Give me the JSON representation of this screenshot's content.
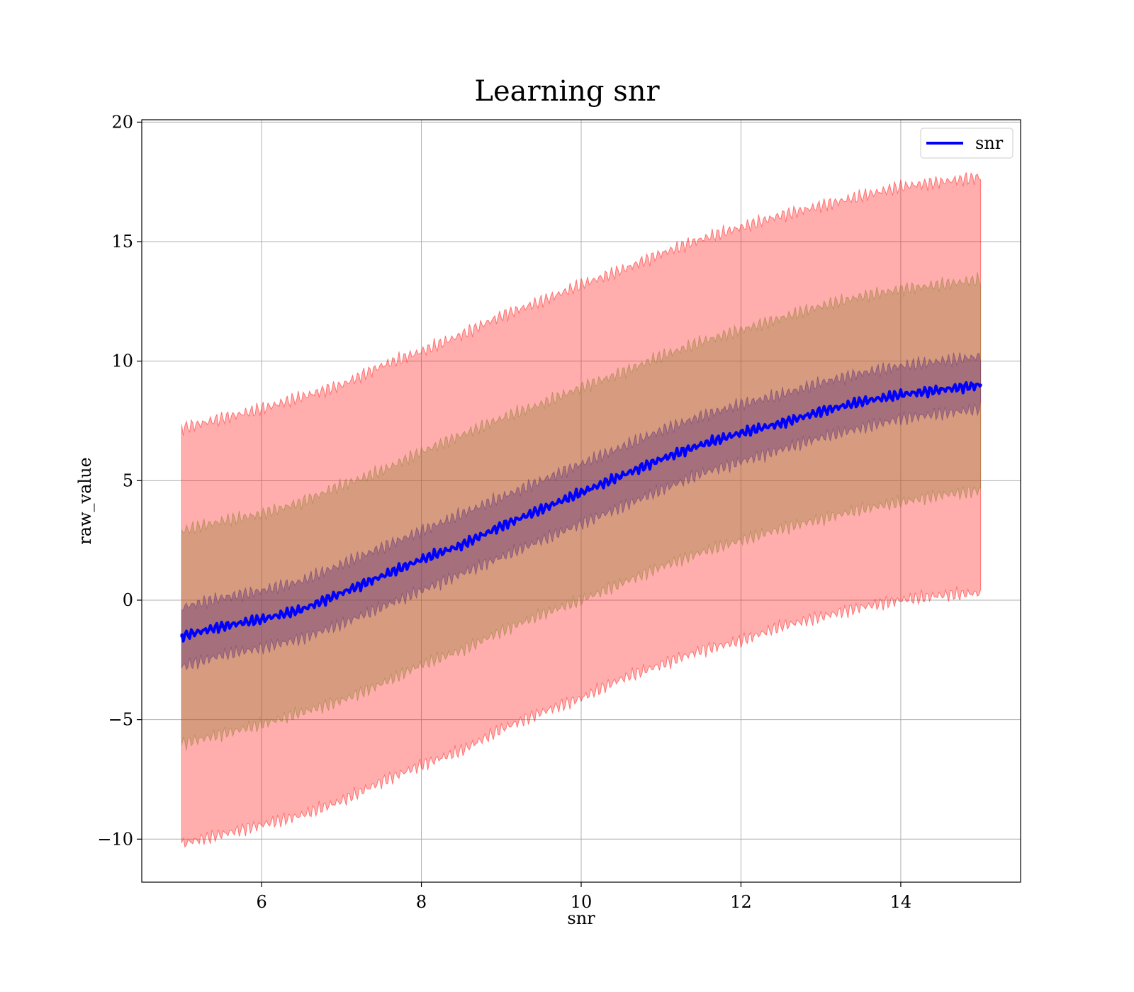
{
  "chart_data": {
    "type": "line",
    "title": "Learning snr",
    "xlabel": "snr",
    "ylabel": "raw_value",
    "xlim": [
      4.5,
      15.5
    ],
    "ylim": [
      -11.8,
      20.1
    ],
    "xticks": [
      6,
      8,
      10,
      12,
      14
    ],
    "xtick_labels": [
      "6",
      "8",
      "10",
      "12",
      "14"
    ],
    "yticks": [
      -10,
      -5,
      0,
      5,
      10,
      15,
      20
    ],
    "ytick_labels": [
      "−10",
      "−5",
      "0",
      "5",
      "10",
      "15",
      "20"
    ],
    "grid": true,
    "legend_position": "top-right",
    "x": [
      5.0,
      5.5,
      6.0,
      6.5,
      7.0,
      7.5,
      8.0,
      8.5,
      9.0,
      9.5,
      10.0,
      10.5,
      11.0,
      11.5,
      12.0,
      12.5,
      13.0,
      13.5,
      14.0,
      14.5,
      15.0
    ],
    "series": [
      {
        "name": "snr",
        "color": "#0000ff",
        "values": [
          -1.5,
          -1.1,
          -0.8,
          -0.4,
          0.3,
          1.0,
          1.7,
          2.3,
          3.1,
          3.8,
          4.5,
          5.2,
          5.9,
          6.5,
          7.0,
          7.4,
          7.9,
          8.3,
          8.6,
          8.8,
          9.0
        ]
      }
    ],
    "bands": [
      {
        "color": "#ff0000",
        "opacity": 0.32,
        "lower": [
          -10.2,
          -9.8,
          -9.4,
          -9.0,
          -8.4,
          -7.6,
          -6.9,
          -6.3,
          -5.4,
          -4.7,
          -4.1,
          -3.3,
          -2.7,
          -2.1,
          -1.7,
          -1.1,
          -0.7,
          -0.3,
          0.0,
          0.2,
          0.3
        ],
        "upper": [
          7.2,
          7.6,
          8.0,
          8.5,
          9.0,
          9.8,
          10.4,
          11.1,
          11.9,
          12.5,
          13.2,
          13.8,
          14.5,
          15.1,
          15.6,
          16.1,
          16.5,
          16.9,
          17.3,
          17.5,
          17.7
        ]
      },
      {
        "color": "#8b7d2a",
        "opacity": 0.35,
        "lower": [
          -6.0,
          -5.6,
          -5.2,
          -4.7,
          -4.2,
          -3.5,
          -2.7,
          -2.1,
          -1.3,
          -0.6,
          0.0,
          0.7,
          1.4,
          2.0,
          2.5,
          3.0,
          3.4,
          3.8,
          4.1,
          4.4,
          4.6
        ],
        "upper": [
          2.9,
          3.3,
          3.6,
          4.1,
          4.8,
          5.4,
          6.2,
          6.9,
          7.6,
          8.2,
          8.9,
          9.5,
          10.2,
          10.8,
          11.3,
          11.8,
          12.3,
          12.7,
          13.0,
          13.2,
          13.4
        ]
      },
      {
        "color": "#5a2f78",
        "opacity": 0.4,
        "lower": [
          -2.8,
          -2.3,
          -2.0,
          -1.6,
          -1.0,
          -0.3,
          0.4,
          1.1,
          1.8,
          2.5,
          3.2,
          3.9,
          4.6,
          5.3,
          5.8,
          6.3,
          6.8,
          7.2,
          7.6,
          7.8,
          8.0
        ],
        "upper": [
          -0.3,
          0.1,
          0.4,
          0.8,
          1.5,
          2.2,
          2.9,
          3.6,
          4.3,
          5.0,
          5.7,
          6.4,
          7.1,
          7.7,
          8.2,
          8.6,
          9.1,
          9.5,
          9.8,
          10.0,
          10.2
        ]
      }
    ]
  }
}
